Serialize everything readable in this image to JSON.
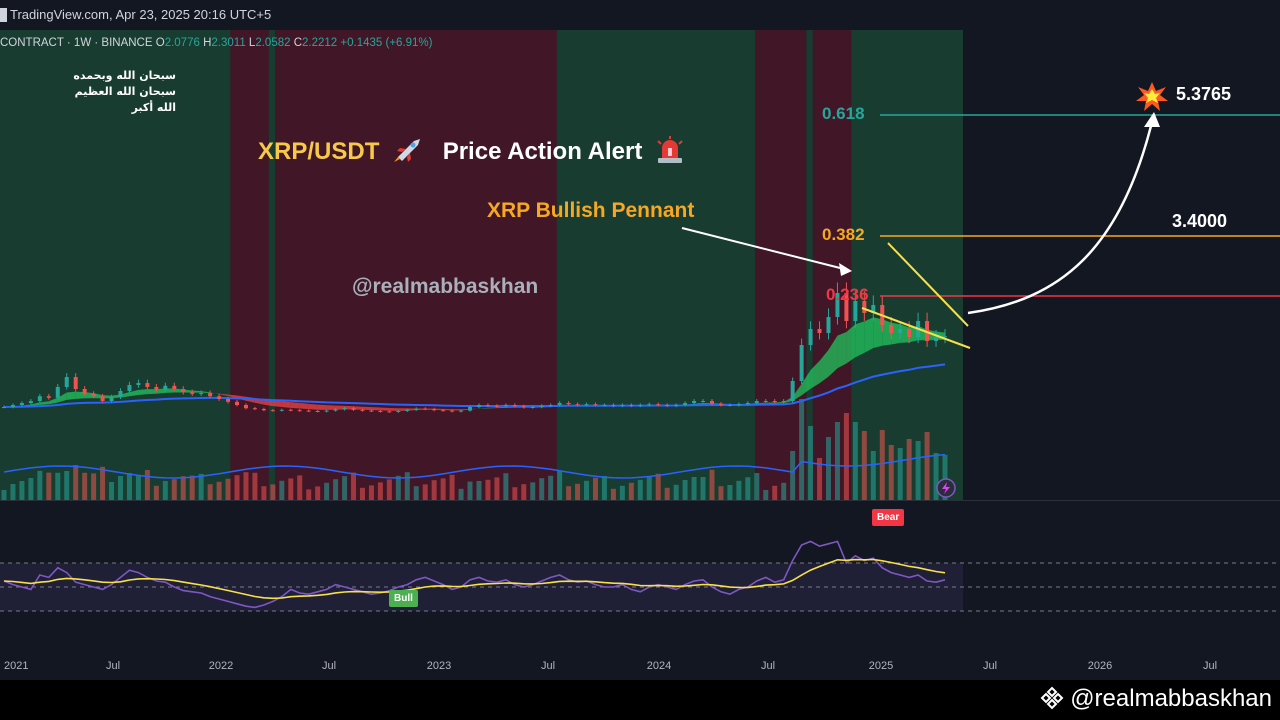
{
  "header": {
    "source": "TradingView.com, Apr 23, 2025 20:16 UTC+5"
  },
  "symbol_bar": {
    "symbol": "CONTRACT",
    "interval": "1W",
    "exchange": "BINANCE",
    "open_label": "O",
    "open": "2.0776",
    "high_label": "H",
    "high": "2.3011",
    "low_label": "L",
    "low": "2.0582",
    "close_label": "C",
    "close": "2.2212",
    "change": "+0.1435 (+6.91%)"
  },
  "overlay_text": {
    "arabic_line1": "سبحان الله وبحمده",
    "arabic_line2": "سبحان الله العظيم",
    "arabic_line3": "الله أكبر",
    "headline_pair": "XRP/USDT",
    "headline_alert": "Price Action Alert",
    "pennant_label": "XRP Bullish Pennant",
    "handle": "@realmabbaskhan",
    "watermark": "@realmabbaskhan"
  },
  "icons": {
    "rocket": "rocket-icon",
    "siren": "siren-icon",
    "explosion": "explosion-icon",
    "binance": "binance-logo-icon",
    "lightning": "lightning-icon"
  },
  "colors": {
    "background": "#131722",
    "bull_zone": "#1b4332",
    "bear_zone": "#4a1828",
    "candle_up": "#26a69a",
    "candle_down": "#ef5350",
    "fib_618": "#26a69a",
    "fib_382": "#f7a823",
    "fib_236": "#f23645",
    "pennant": "#f7e04a",
    "ma_blue": "#2962ff",
    "rsi": "#7e57c2",
    "rsi_ma": "#f7e04a"
  },
  "chart_data": {
    "type": "candlestick",
    "pair": "XRP/USDT",
    "fib_levels": [
      {
        "label": "0.618",
        "color": "#26a69a"
      },
      {
        "label": "0.382",
        "color": "#f7a823"
      },
      {
        "label": "0.236",
        "color": "#f23645"
      }
    ],
    "targets": [
      {
        "label": "5.3765",
        "value": 5.3765
      },
      {
        "label": "3.4000",
        "value": 3.4
      }
    ],
    "x_ticks": [
      "2021",
      "Jul",
      "2022",
      "Jul",
      "2023",
      "Jul",
      "2024",
      "Jul",
      "2025",
      "Jul",
      "2026",
      "Jul"
    ],
    "last_candle": {
      "open": 2.0776,
      "high": 2.3011,
      "low": 2.0582,
      "close": 2.2212
    },
    "price_series": [
      0.45,
      0.5,
      0.55,
      0.6,
      0.72,
      0.68,
      0.95,
      1.2,
      0.9,
      0.78,
      0.72,
      0.6,
      0.7,
      0.85,
      1.0,
      1.05,
      0.95,
      0.88,
      0.98,
      0.9,
      0.82,
      0.78,
      0.8,
      0.72,
      0.65,
      0.58,
      0.5,
      0.42,
      0.4,
      0.37,
      0.36,
      0.38,
      0.37,
      0.36,
      0.35,
      0.34,
      0.36,
      0.39,
      0.42,
      0.38,
      0.36,
      0.35,
      0.34,
      0.33,
      0.35,
      0.38,
      0.41,
      0.4,
      0.37,
      0.36,
      0.34,
      0.36,
      0.45,
      0.5,
      0.48,
      0.47,
      0.5,
      0.47,
      0.44,
      0.45,
      0.48,
      0.5,
      0.55,
      0.52,
      0.5,
      0.52,
      0.5,
      0.5,
      0.48,
      0.5,
      0.48,
      0.5,
      0.52,
      0.5,
      0.48,
      0.5,
      0.55,
      0.6,
      0.6,
      0.53,
      0.5,
      0.5,
      0.52,
      0.55,
      0.6,
      0.6,
      0.58,
      0.6,
      1.1,
      2.0,
      2.4,
      2.3,
      2.7,
      3.3,
      2.6,
      3.1,
      2.8,
      3.0,
      2.5,
      2.3,
      2.4,
      2.2,
      2.6,
      2.1,
      2.2,
      2.22
    ],
    "rsi_series": [
      55,
      52,
      50,
      48,
      60,
      58,
      66,
      62,
      54,
      52,
      50,
      48,
      52,
      58,
      64,
      62,
      58,
      55,
      54,
      50,
      47,
      46,
      45,
      42,
      40,
      38,
      36,
      34,
      33,
      35,
      38,
      42,
      48,
      45,
      44,
      46,
      48,
      52,
      50,
      48,
      46,
      44,
      45,
      47,
      50,
      52,
      56,
      58,
      55,
      52,
      48,
      50,
      56,
      58,
      55,
      54,
      56,
      52,
      50,
      52,
      55,
      58,
      60,
      56,
      54,
      55,
      52,
      50,
      50,
      52,
      48,
      46,
      50,
      52,
      50,
      48,
      52,
      55,
      56,
      50,
      46,
      44,
      48,
      50,
      55,
      58,
      54,
      56,
      72,
      85,
      88,
      84,
      86,
      88,
      70,
      76,
      72,
      74,
      66,
      62,
      60,
      58,
      60,
      55,
      54,
      56
    ],
    "zones": [
      {
        "type": "bull",
        "from": 0,
        "to": 0.18
      },
      {
        "type": "bear",
        "from": 0.18,
        "to": 0.21
      },
      {
        "type": "bull",
        "from": 0.21,
        "to": 0.215
      },
      {
        "type": "bear",
        "from": 0.215,
        "to": 0.435
      },
      {
        "type": "bull",
        "from": 0.435,
        "to": 0.59
      },
      {
        "type": "bear",
        "from": 0.59,
        "to": 0.63
      },
      {
        "type": "bull",
        "from": 0.63,
        "to": 0.635
      },
      {
        "type": "bear",
        "from": 0.635,
        "to": 0.665
      },
      {
        "type": "bull",
        "from": 0.665,
        "to": 0.753
      }
    ],
    "signals": [
      {
        "label": "Bear"
      },
      {
        "label": "Bull"
      }
    ]
  }
}
